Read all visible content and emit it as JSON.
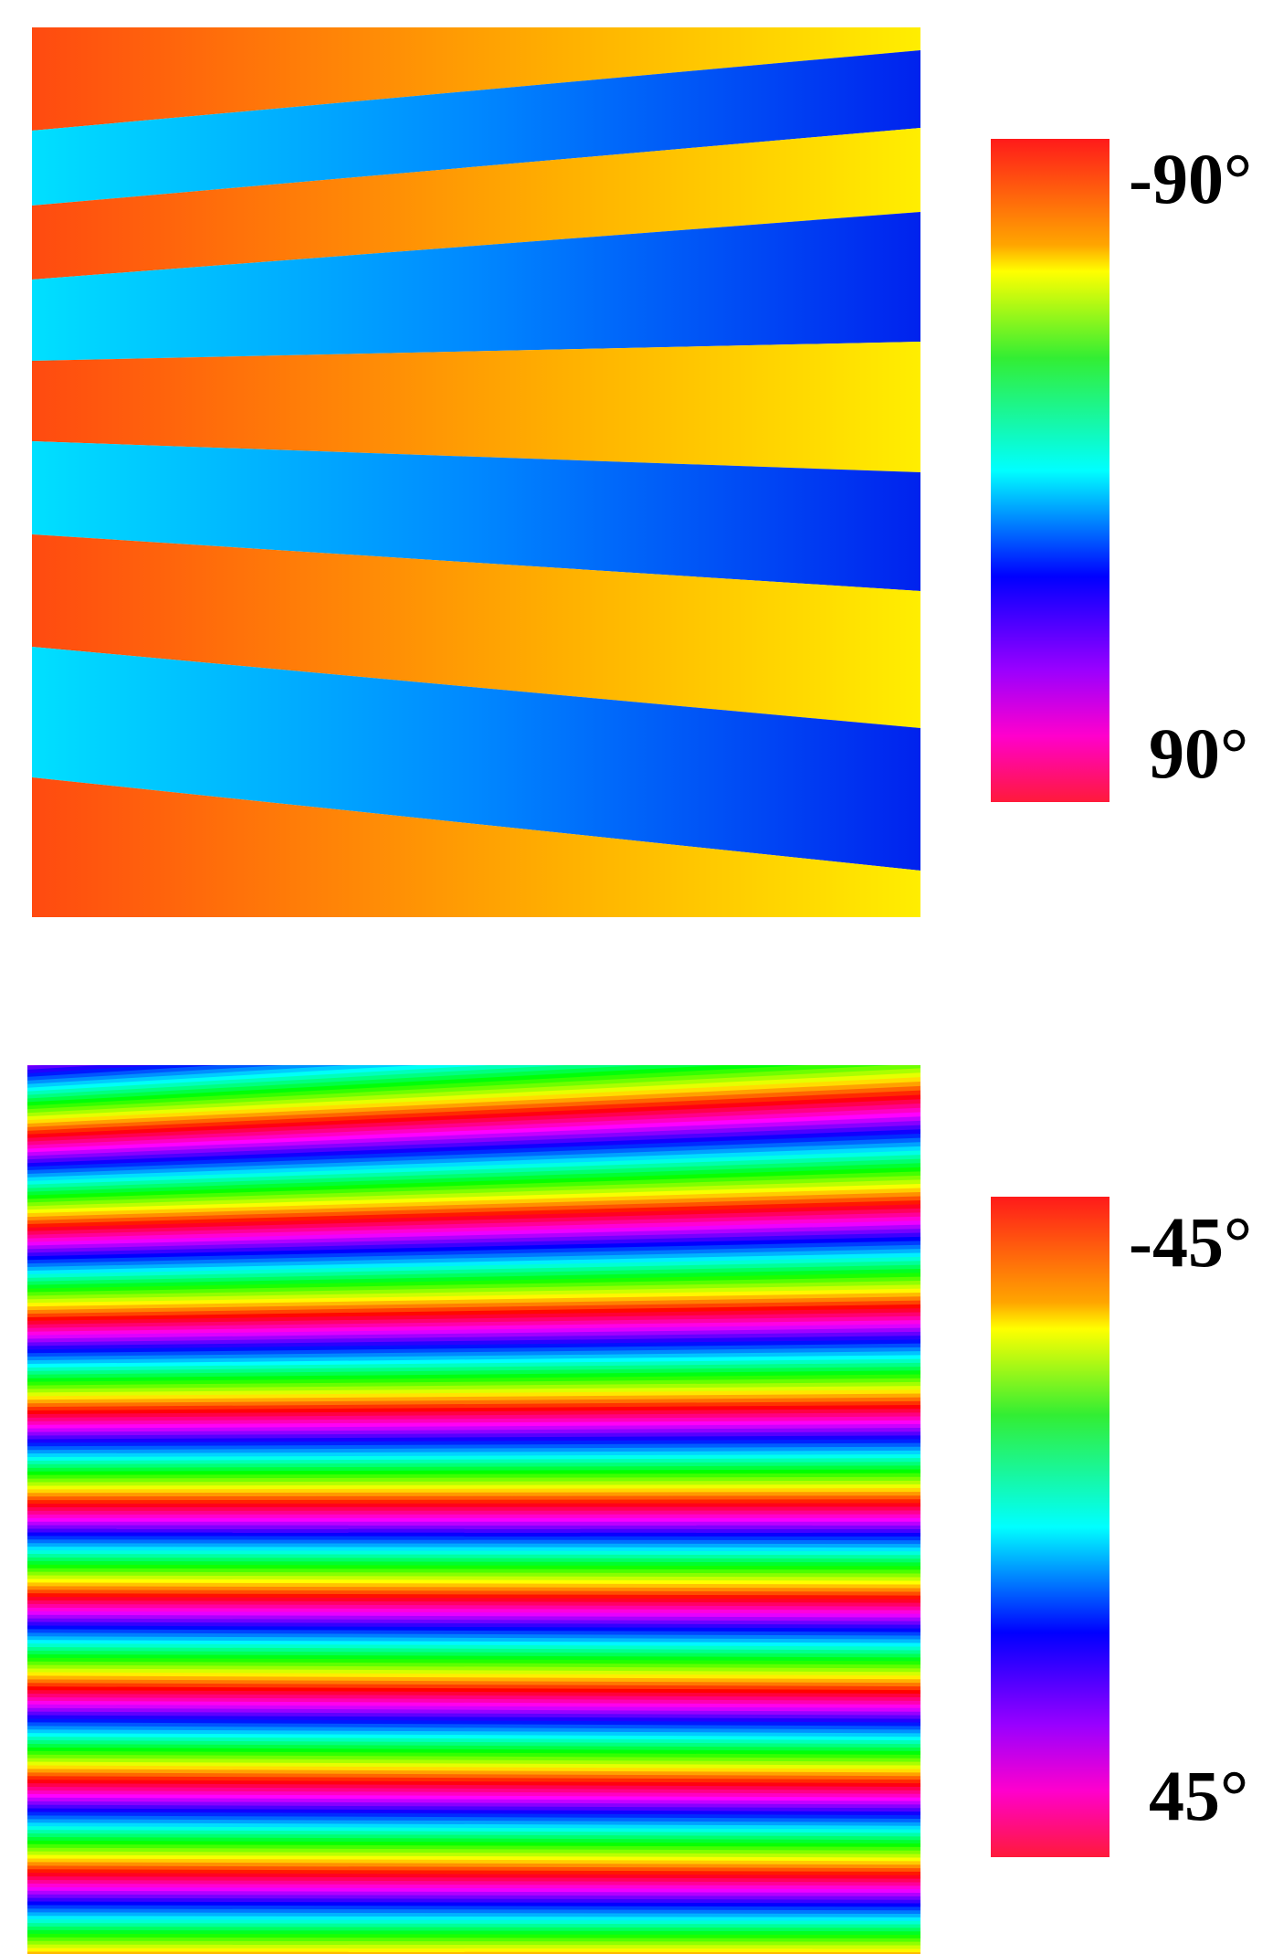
{
  "panels": [
    {
      "colorbar": {
        "top_label": "-90°",
        "bottom_label": "90°"
      }
    },
    {
      "colorbar": {
        "top_label": "-45°",
        "bottom_label": "45°"
      }
    }
  ]
}
